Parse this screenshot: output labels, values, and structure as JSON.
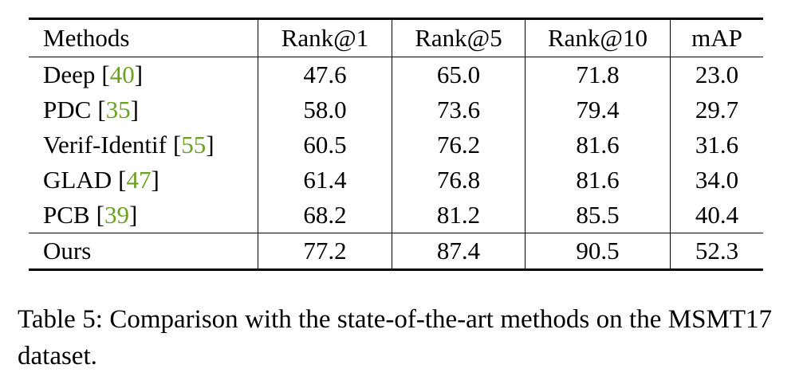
{
  "table": {
    "header": [
      "Methods",
      "Rank@1",
      "Rank@5",
      "Rank@10",
      "mAP"
    ],
    "rows": [
      {
        "method": "Deep",
        "ref": "[40]",
        "values": [
          "47.6",
          "65.0",
          "71.8",
          "23.0"
        ]
      },
      {
        "method": "PDC",
        "ref": "[35]",
        "values": [
          "58.0",
          "73.6",
          "79.4",
          "29.7"
        ]
      },
      {
        "method": "Verif-Identif",
        "ref": "[55]",
        "values": [
          "60.5",
          "76.2",
          "81.6",
          "31.6"
        ]
      },
      {
        "method": "GLAD",
        "ref": "[47]",
        "values": [
          "61.4",
          "76.8",
          "81.6",
          "34.0"
        ]
      },
      {
        "method": "PCB",
        "ref": "[39]",
        "values": [
          "68.2",
          "81.2",
          "85.5",
          "40.4"
        ]
      },
      {
        "method": "Ours",
        "values": [
          "77.2",
          "87.4",
          "90.5",
          "52.3"
        ],
        "bold": true
      }
    ]
  },
  "caption": "Table 5: Comparison with the state-of-the-art methods on the MSMT17 dataset."
}
